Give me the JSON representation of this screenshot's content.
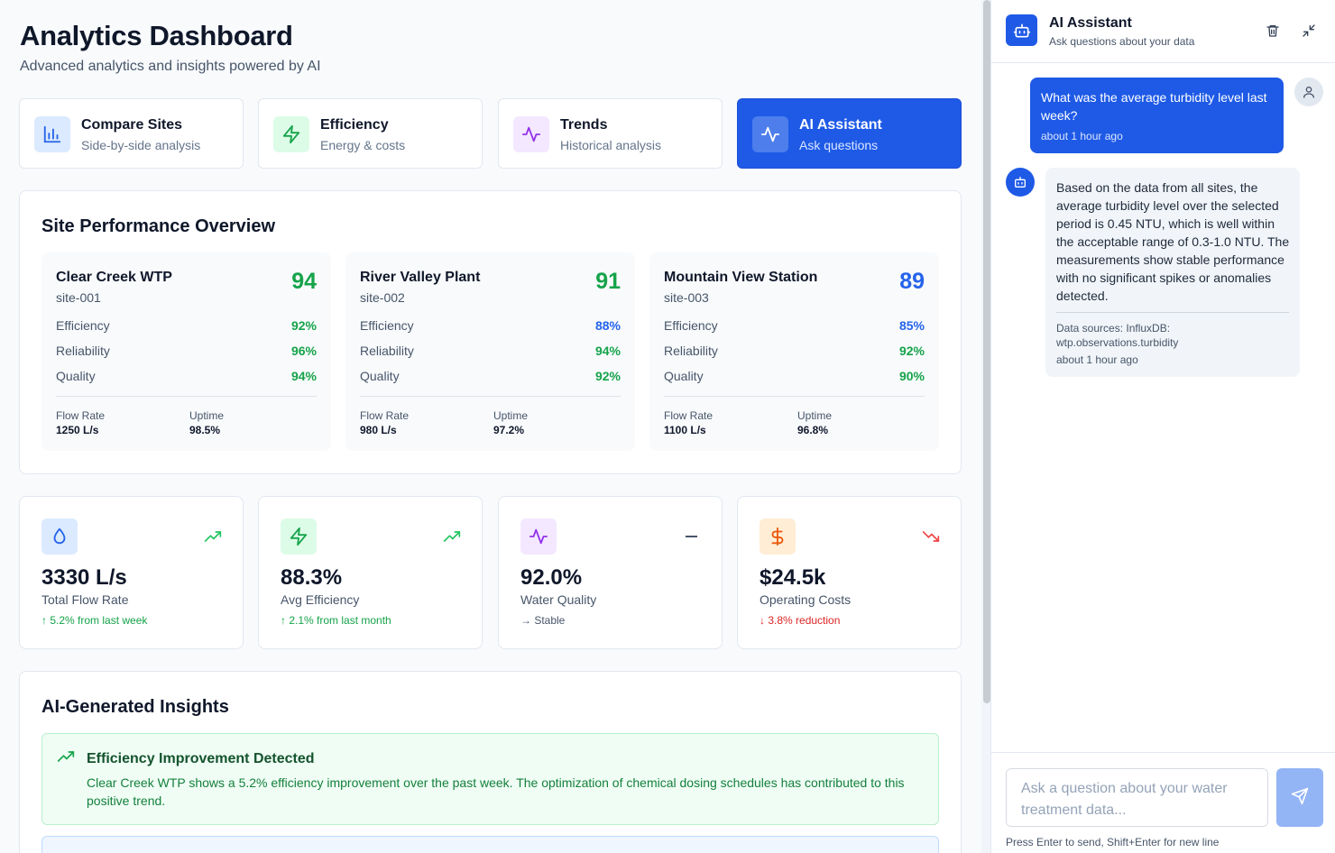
{
  "header": {
    "title": "Analytics Dashboard",
    "subtitle": "Advanced analytics and insights powered by AI"
  },
  "nav_cards": [
    {
      "title": "Compare Sites",
      "subtitle": "Side-by-side analysis",
      "icon": "bar-chart-icon",
      "color": "#2563eb",
      "bg": "#dbeafe"
    },
    {
      "title": "Efficiency",
      "subtitle": "Energy & costs",
      "icon": "zap-icon",
      "color": "#16a34a",
      "bg": "#dcfce7"
    },
    {
      "title": "Trends",
      "subtitle": "Historical analysis",
      "icon": "activity-icon",
      "color": "#9333ea",
      "bg": "#f3e8ff"
    },
    {
      "title": "AI Assistant",
      "subtitle": "Ask questions",
      "icon": "activity-icon",
      "active": true
    }
  ],
  "performance": {
    "title": "Site Performance Overview",
    "sites": [
      {
        "name": "Clear Creek WTP",
        "id": "site-001",
        "score": "94",
        "score_color": "#16a34a",
        "metrics": [
          {
            "label": "Efficiency",
            "value": "92%",
            "color": "#16a34a"
          },
          {
            "label": "Reliability",
            "value": "96%",
            "color": "#16a34a"
          },
          {
            "label": "Quality",
            "value": "94%",
            "color": "#16a34a"
          }
        ],
        "flow_label": "Flow Rate",
        "flow_value": "1250 L/s",
        "uptime_label": "Uptime",
        "uptime_value": "98.5%"
      },
      {
        "name": "River Valley Plant",
        "id": "site-002",
        "score": "91",
        "score_color": "#16a34a",
        "metrics": [
          {
            "label": "Efficiency",
            "value": "88%",
            "color": "#2563eb"
          },
          {
            "label": "Reliability",
            "value": "94%",
            "color": "#16a34a"
          },
          {
            "label": "Quality",
            "value": "92%",
            "color": "#16a34a"
          }
        ],
        "flow_label": "Flow Rate",
        "flow_value": "980 L/s",
        "uptime_label": "Uptime",
        "uptime_value": "97.2%"
      },
      {
        "name": "Mountain View Station",
        "id": "site-003",
        "score": "89",
        "score_color": "#2563eb",
        "metrics": [
          {
            "label": "Efficiency",
            "value": "85%",
            "color": "#2563eb"
          },
          {
            "label": "Reliability",
            "value": "92%",
            "color": "#16a34a"
          },
          {
            "label": "Quality",
            "value": "90%",
            "color": "#16a34a"
          }
        ],
        "flow_label": "Flow Rate",
        "flow_value": "1100 L/s",
        "uptime_label": "Uptime",
        "uptime_value": "96.8%"
      }
    ]
  },
  "kpis": [
    {
      "value": "3330 L/s",
      "label": "Total Flow Rate",
      "change": "↑ 5.2% from last week",
      "change_color": "#16a34a",
      "icon": "droplet-icon",
      "trend": "trending-up-icon"
    },
    {
      "value": "88.3%",
      "label": "Avg Efficiency",
      "change": "↑ 2.1% from last month",
      "change_color": "#16a34a",
      "icon": "zap-icon",
      "trend": "trending-up-icon"
    },
    {
      "value": "92.0%",
      "label": "Water Quality",
      "change": "→ Stable",
      "change_color": "#475569",
      "icon": "activity-icon",
      "trend": "minus-icon"
    },
    {
      "value": "$24.5k",
      "label": "Operating Costs",
      "change": "↓ 3.8% reduction",
      "change_color": "#dc2626",
      "icon": "dollar-icon",
      "trend": "trending-down-icon"
    }
  ],
  "insights": {
    "title": "AI-Generated Insights",
    "items": [
      {
        "title": "Efficiency Improvement Detected",
        "text": "Clear Creek WTP shows a 5.2% efficiency improvement over the past week. The optimization of chemical dosing schedules has contributed to this positive trend."
      }
    ]
  },
  "assistant": {
    "title": "AI Assistant",
    "subtitle": "Ask questions about your data",
    "user_message": {
      "text": "What was the average turbidity level last week?",
      "time": "about 1 hour ago"
    },
    "bot_message": {
      "text": "Based on the data from all sites, the average turbidity level over the selected period is 0.45 NTU, which is well within the acceptable range of 0.3-1.0 NTU. The measurements show stable performance with no significant spikes or anomalies detected.",
      "sources": "Data sources: InfluxDB: wtp.observations.turbidity",
      "time": "about 1 hour ago"
    },
    "input_placeholder": "Ask a question about your water treatment data...",
    "hint": "Press Enter to send, Shift+Enter for new line"
  }
}
